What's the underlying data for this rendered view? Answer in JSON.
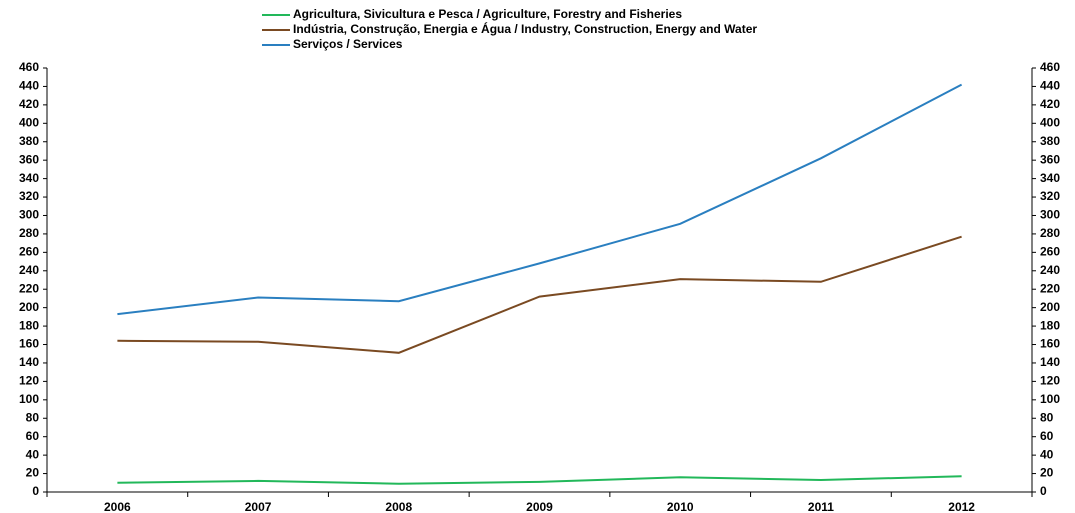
{
  "chart_data": {
    "type": "line",
    "categories": [
      "2006",
      "2007",
      "2008",
      "2009",
      "2010",
      "2011",
      "2012"
    ],
    "series": [
      {
        "name": "Agricultura, Sivicultura e Pesca / Agriculture, Forestry and Fisheries",
        "color": "#22b85a",
        "values": [
          10,
          12,
          9,
          11,
          16,
          13,
          17
        ]
      },
      {
        "name": "Indústria, Construção, Energia e Água / Industry, Construction, Energy and Water",
        "color": "#7a4a22",
        "values": [
          164,
          163,
          151,
          212,
          231,
          228,
          277
        ]
      },
      {
        "name": "Serviços / Services",
        "color": "#2a7fc0",
        "values": [
          193,
          211,
          207,
          248,
          291,
          362,
          442
        ]
      }
    ],
    "ylim": [
      0,
      460
    ],
    "yticks": [
      0,
      20,
      40,
      60,
      80,
      100,
      120,
      140,
      160,
      180,
      200,
      220,
      240,
      260,
      280,
      300,
      320,
      340,
      360,
      380,
      400,
      420,
      440,
      460
    ],
    "y2lim": [
      0,
      460
    ],
    "y2ticks": [
      0,
      20,
      40,
      60,
      80,
      100,
      120,
      140,
      160,
      180,
      200,
      220,
      240,
      260,
      280,
      300,
      320,
      340,
      360,
      380,
      400,
      420,
      440,
      460
    ],
    "legend": "top"
  }
}
